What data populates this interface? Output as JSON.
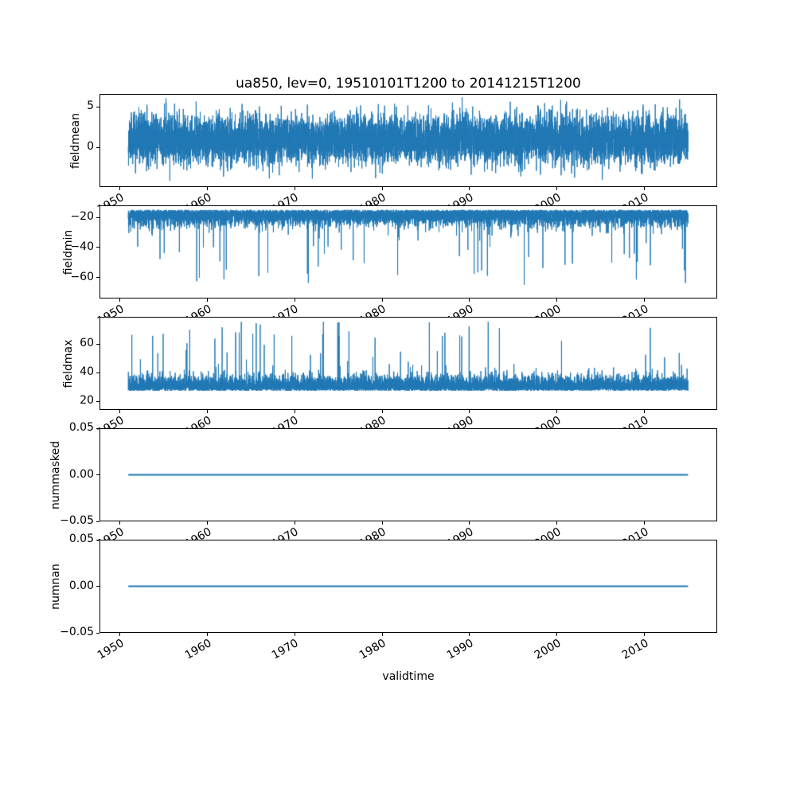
{
  "figure": {
    "background": "#ffffff",
    "text_color": "#000000"
  },
  "chart_data": {
    "type": "line",
    "title": "ua850, lev=0, 19510101T1200 to 20141215T1200",
    "xlabel": "validtime",
    "grid": false,
    "legend": false,
    "line_color": "#1f77b4",
    "n_points": 8000,
    "x_axis": {
      "lim": [
        1947.8,
        2018.2
      ],
      "ticks": [
        1950,
        1960,
        1970,
        1980,
        1990,
        2000,
        2010
      ],
      "tick_labels": [
        "1950",
        "1960",
        "1970",
        "1980",
        "1990",
        "2000",
        "2010"
      ],
      "tick_rotation_deg": 30,
      "data_start": 1951.0,
      "data_end": 2014.96
    },
    "subplots": [
      {
        "ylabel": "fieldmean",
        "ylim": [
          -4.9,
          6.6
        ],
        "ytick_values": [
          0,
          5
        ],
        "ytick_labels": [
          "0",
          "5"
        ],
        "signal": {
          "kind": "gaussian",
          "mean": 1.0,
          "std": 1.5,
          "clip_min": -4.6,
          "clip_max": 6.3,
          "seed": 11
        }
      },
      {
        "ylabel": "fieldmin",
        "ylim": [
          -74,
          -12
        ],
        "ytick_values": [
          -20,
          -40,
          -60
        ],
        "ytick_labels": [
          "−20",
          "−40",
          "−60"
        ],
        "signal": {
          "kind": "half_gaussian",
          "base": -14.5,
          "scale": -5,
          "spike_prob": 0.008,
          "spike_min": 8,
          "spike_span": 42,
          "clip": -72.5,
          "seed": 22
        }
      },
      {
        "ylabel": "fieldmax",
        "ylim": [
          14,
          79
        ],
        "ytick_values": [
          20,
          40,
          60
        ],
        "ytick_labels": [
          "20",
          "40",
          "60"
        ],
        "signal": {
          "kind": "half_gaussian",
          "base": 27,
          "scale": 5,
          "spike_prob": 0.008,
          "spike_min": 8,
          "spike_span": 40,
          "clip": 76,
          "seed": 33
        }
      },
      {
        "ylabel": "nummasked",
        "ylim": [
          -0.05,
          0.05
        ],
        "ytick_values": [
          -0.05,
          0,
          0.05
        ],
        "ytick_labels": [
          "−0.05",
          "0.00",
          "0.05"
        ],
        "signal": {
          "kind": "constant",
          "value": 0,
          "seed": 44
        }
      },
      {
        "ylabel": "numnan",
        "ylim": [
          -0.05,
          0.05
        ],
        "ytick_values": [
          -0.05,
          0,
          0.05
        ],
        "ytick_labels": [
          "−0.05",
          "0.00",
          "0.05"
        ],
        "signal": {
          "kind": "constant",
          "value": 0,
          "seed": 55
        }
      }
    ]
  }
}
